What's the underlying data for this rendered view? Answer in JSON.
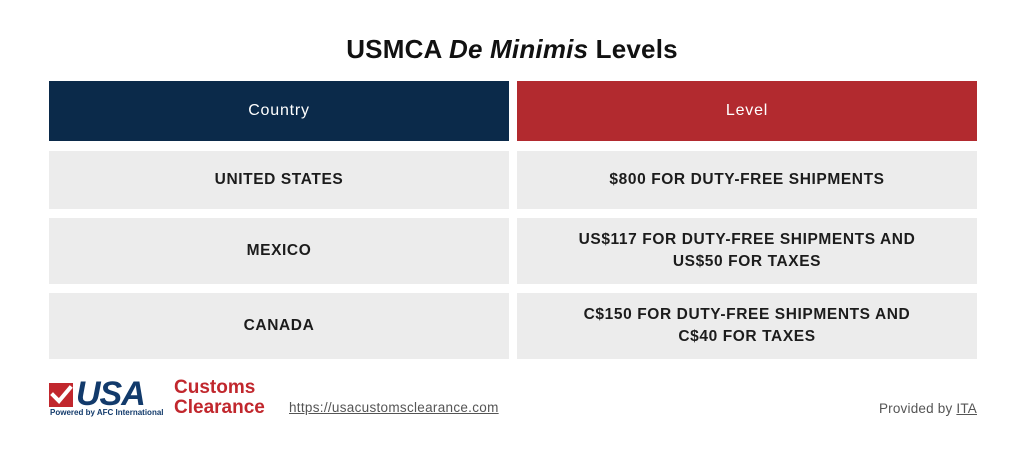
{
  "title": {
    "prefix": "USMCA ",
    "italic": "De Minimis",
    "suffix": " Levels"
  },
  "table": {
    "headers": {
      "country": "Country",
      "level": "Level"
    },
    "rows": [
      {
        "country": "UNITED STATES",
        "level": "$800 FOR DUTY-FREE SHIPMENTS"
      },
      {
        "country": "MEXICO",
        "level": "US$117 FOR DUTY-FREE SHIPMENTS AND US$50 FOR TAXES"
      },
      {
        "country": "CANADA",
        "level": "C$150 FOR DUTY-FREE SHIPMENTS AND C$40 FOR TAXES"
      }
    ]
  },
  "logo": {
    "usa": "USA",
    "customs": "Customs",
    "clearance": "Clearance",
    "powered": "Powered by AFC International"
  },
  "footer": {
    "url": "https://usacustomsclearance.com",
    "provided_prefix": "Provided by ",
    "provided_link": "ITA"
  },
  "colors": {
    "country_header_bg": "#0b2a4a",
    "level_header_bg": "#b22a2f",
    "row_bg": "#ececec",
    "brand_red": "#c1272d",
    "brand_blue": "#123a6b"
  }
}
